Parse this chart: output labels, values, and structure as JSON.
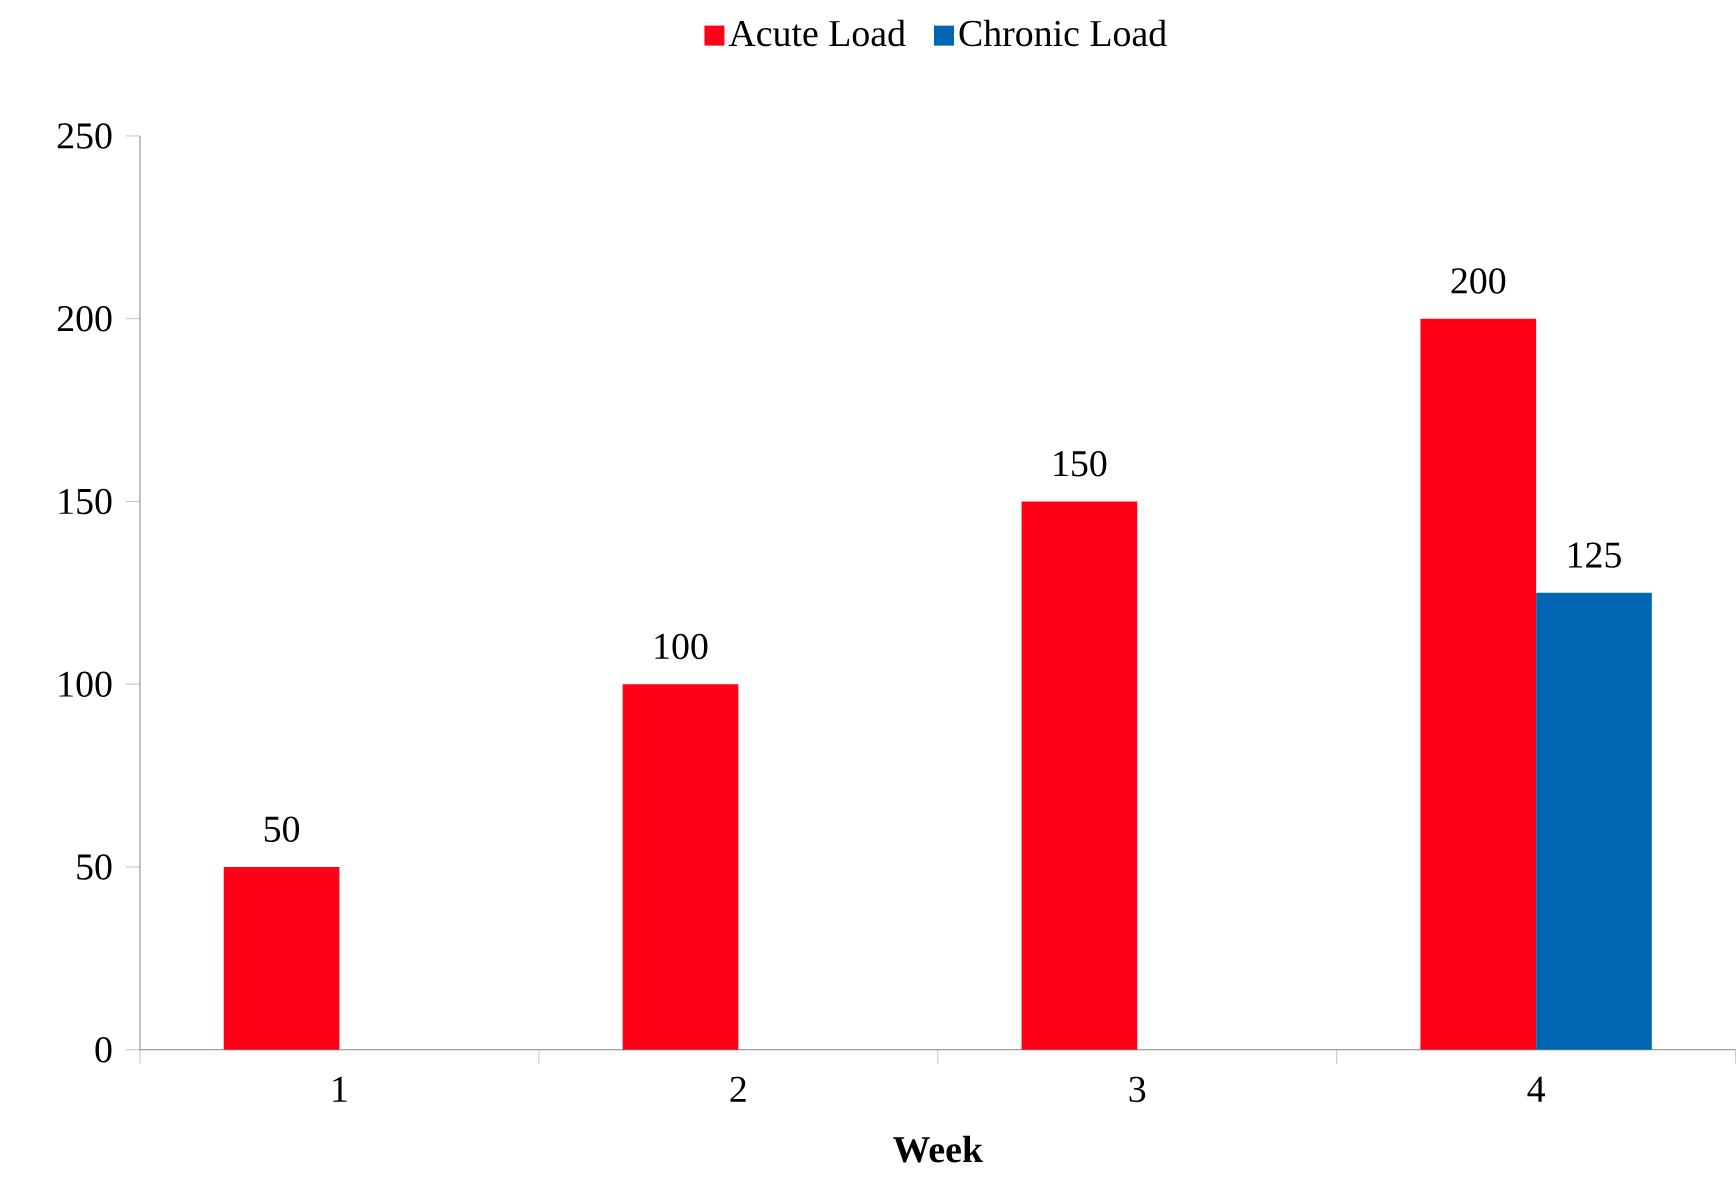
{
  "chart_data": {
    "type": "bar",
    "xlabel": "Week",
    "categories": [
      "1",
      "2",
      "3",
      "4"
    ],
    "series": [
      {
        "name": "Acute Load",
        "color": "#ff0016",
        "values": [
          50,
          100,
          150,
          200
        ]
      },
      {
        "name": "Chronic Load",
        "color": "#0066b3",
        "values": [
          null,
          null,
          null,
          125
        ]
      }
    ],
    "ylim": [
      0,
      250
    ],
    "yticks": [
      0,
      50,
      100,
      150,
      200,
      250
    ],
    "data_labels": true,
    "legend": "top",
    "grid": false
  }
}
